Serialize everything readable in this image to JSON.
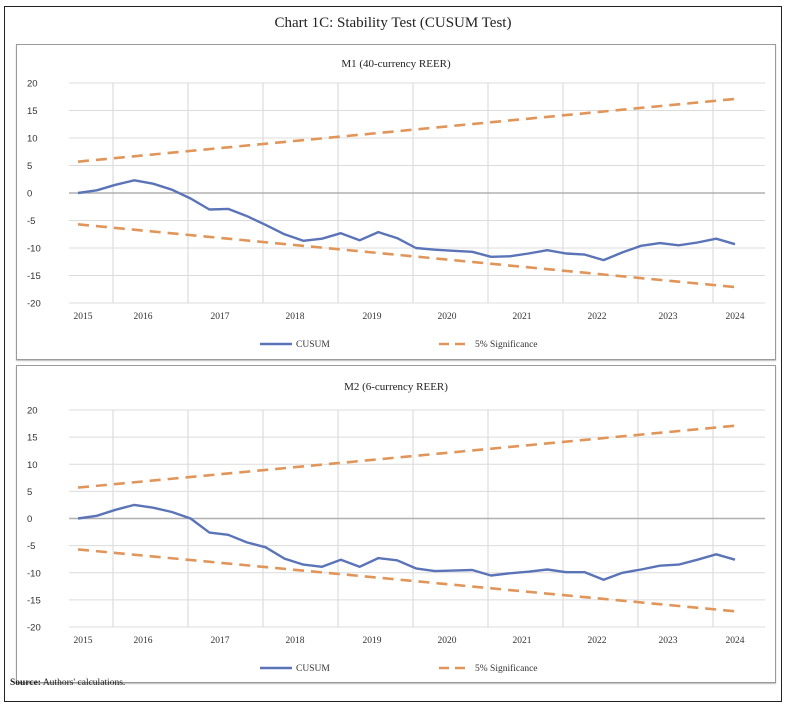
{
  "title": "Chart 1C: Stability Test (CUSUM Test)",
  "source_label": "Source:",
  "source_text": " Authors' calculations.",
  "colors": {
    "cusum": "#5b74b8",
    "significance": "#e0955a",
    "grid": "#dcdcdc",
    "zero": "#b0b0b0"
  },
  "chart_data": [
    {
      "type": "line",
      "title": "M1 (40-currency REER)",
      "xlabel": "",
      "ylabel": "",
      "ylim": [
        -20,
        20
      ],
      "yticks": [
        20,
        15,
        10,
        5,
        0,
        -5,
        -10,
        -15,
        -20
      ],
      "xtick_labels": [
        "2015",
        "2016",
        "2017",
        "2018",
        "2019",
        "2020",
        "2021",
        "2022",
        "2023",
        "2024"
      ],
      "grid": true,
      "legend": "bottom",
      "n_points": 36,
      "series": [
        {
          "name": "CUSUM",
          "style": "solid",
          "values": [
            0,
            0.5,
            1.5,
            2.3,
            1.7,
            0.6,
            -1.0,
            -3.0,
            -2.9,
            -4.2,
            -5.8,
            -7.5,
            -8.7,
            -8.3,
            -7.3,
            -8.6,
            -7.1,
            -8.2,
            -10.0,
            -10.3,
            -10.5,
            -10.7,
            -11.6,
            -11.5,
            -11.0,
            -10.4,
            -11.0,
            -11.2,
            -12.2,
            -10.8,
            -9.6,
            -9.1,
            -9.5,
            -9.0,
            -8.3,
            -9.3
          ]
        },
        {
          "name": "5% Significance",
          "style": "dashed",
          "start": 5.7,
          "end": 17.1,
          "symmetric": true
        }
      ]
    },
    {
      "type": "line",
      "title": "M2 (6-currency REER)",
      "xlabel": "",
      "ylabel": "",
      "ylim": [
        -20,
        20
      ],
      "yticks": [
        20,
        15,
        10,
        5,
        0,
        -5,
        -10,
        -15,
        -20
      ],
      "xtick_labels": [
        "2015",
        "2016",
        "2017",
        "2018",
        "2019",
        "2020",
        "2021",
        "2022",
        "2023",
        "2024"
      ],
      "grid": true,
      "legend": "bottom",
      "n_points": 36,
      "series": [
        {
          "name": "CUSUM",
          "style": "solid",
          "values": [
            0,
            0.5,
            1.6,
            2.5,
            2.0,
            1.2,
            0,
            -2.6,
            -3.0,
            -4.4,
            -5.3,
            -7.4,
            -8.5,
            -8.9,
            -7.6,
            -8.9,
            -7.3,
            -7.7,
            -9.2,
            -9.7,
            -9.6,
            -9.5,
            -10.5,
            -10.1,
            -9.8,
            -9.4,
            -9.9,
            -9.9,
            -11.3,
            -10.0,
            -9.4,
            -8.7,
            -8.5,
            -7.6,
            -6.6,
            -7.6
          ]
        },
        {
          "name": "5% Significance",
          "style": "dashed",
          "start": 5.7,
          "end": 17.1,
          "symmetric": true
        }
      ]
    }
  ]
}
